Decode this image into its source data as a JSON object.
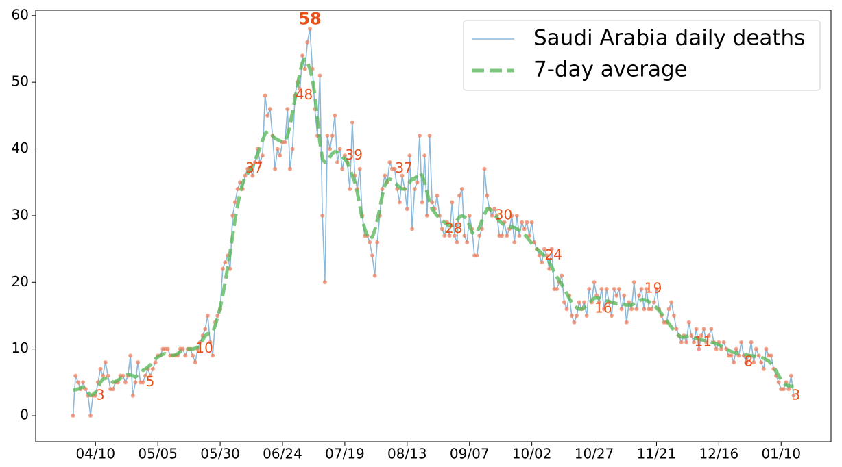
{
  "chart_data": {
    "type": "line",
    "x": [
      0,
      1,
      2,
      3,
      4,
      5,
      6,
      7,
      8,
      9,
      10,
      11,
      12,
      13,
      14,
      15,
      16,
      17,
      18,
      19,
      20,
      21,
      22,
      23,
      24,
      25,
      26,
      27,
      28,
      29,
      30,
      31,
      32,
      33,
      34,
      35,
      36,
      37,
      38,
      39,
      40,
      41,
      42,
      43,
      44,
      45,
      46,
      47,
      48,
      49,
      50,
      51,
      52,
      53,
      54,
      55,
      56,
      57,
      58,
      59,
      60,
      61,
      62,
      63,
      64,
      65,
      66,
      67,
      68,
      69,
      70,
      71,
      72,
      73,
      74,
      75,
      76,
      77,
      78,
      79,
      80,
      81,
      82,
      83,
      84,
      85,
      86,
      87,
      88,
      89,
      90,
      91,
      92,
      93,
      94,
      95,
      96,
      97,
      98,
      99,
      100,
      101,
      102,
      103,
      104,
      105,
      106,
      107,
      108,
      109,
      110,
      111,
      112,
      113,
      114,
      115,
      116,
      117,
      118,
      119,
      120,
      121,
      122,
      123,
      124,
      125,
      126,
      127,
      128,
      129,
      130,
      131,
      132,
      133,
      134,
      135,
      136,
      137,
      138,
      139,
      140,
      141,
      142,
      143,
      144,
      145,
      146,
      147,
      148,
      149,
      150,
      151,
      152,
      153,
      154,
      155,
      156,
      157,
      158,
      159,
      160,
      161,
      162,
      163,
      164,
      165,
      166,
      167,
      168,
      169,
      170,
      171,
      172,
      173,
      174,
      175,
      176,
      177,
      178,
      179,
      180,
      181,
      182,
      183,
      184,
      185,
      186,
      187,
      188,
      189,
      190,
      191,
      192,
      193,
      194,
      195,
      196,
      197,
      198,
      199,
      200,
      201,
      202,
      203,
      204,
      205,
      206,
      207,
      208,
      209,
      210,
      211,
      212,
      213,
      214,
      215,
      216,
      217,
      218,
      219,
      220,
      221,
      222,
      223,
      224,
      225,
      226,
      227,
      228,
      229,
      230,
      231,
      232,
      233,
      234,
      235,
      236,
      237,
      238,
      239,
      240,
      241,
      242,
      243,
      244,
      245,
      246,
      247,
      248,
      249,
      250,
      251,
      252,
      253,
      254,
      255,
      256,
      257,
      258,
      259,
      260,
      261,
      262,
      263,
      264,
      265,
      266,
      267,
      268,
      269,
      270,
      271,
      272,
      273,
      274,
      275,
      276,
      277,
      278,
      279,
      280,
      281,
      282,
      283,
      284,
      285,
      286,
      287,
      288,
      289
    ],
    "series": [
      {
        "name": "Saudi Arabia daily deaths",
        "color": "#7fb0d5",
        "marker_color": "#f0805e",
        "style": "solid",
        "values": [
          0,
          6,
          5,
          4,
          5,
          4,
          3,
          0,
          3,
          3,
          5,
          7,
          6,
          8,
          6,
          4,
          4,
          5,
          5,
          6,
          6,
          5,
          6,
          9,
          3,
          5,
          8,
          5,
          5,
          6,
          7,
          6,
          7,
          8,
          9,
          9,
          10,
          10,
          10,
          9,
          9,
          9,
          9,
          10,
          10,
          9,
          10,
          10,
          9,
          8,
          10,
          11,
          12,
          13,
          15,
          11,
          9,
          14,
          15,
          16,
          22,
          23,
          24,
          22,
          30,
          32,
          34,
          35,
          34,
          36,
          37,
          37,
          36,
          38,
          40,
          38,
          39,
          48,
          45,
          46,
          42,
          37,
          40,
          39,
          41,
          41,
          46,
          37,
          40,
          48,
          50,
          49,
          54,
          52,
          56,
          58,
          52,
          46,
          42,
          51,
          30,
          20,
          42,
          40,
          42,
          45,
          38,
          40,
          37,
          39,
          38,
          34,
          44,
          36,
          34,
          37,
          30,
          27,
          27,
          26,
          24,
          21,
          26,
          30,
          34,
          36,
          35,
          38,
          37,
          37,
          34,
          32,
          36,
          34,
          31,
          39,
          28,
          34,
          35,
          42,
          32,
          39,
          30,
          42,
          32,
          31,
          33,
          30,
          28,
          27,
          29,
          27,
          32,
          27,
          26,
          33,
          34,
          27,
          26,
          30,
          28,
          24,
          24,
          27,
          28,
          37,
          33,
          31,
          30,
          31,
          30,
          27,
          27,
          29,
          27,
          28,
          30,
          26,
          30,
          27,
          29,
          28,
          29,
          27,
          29,
          26,
          25,
          24,
          23,
          25,
          24,
          22,
          25,
          19,
          19,
          20,
          21,
          17,
          16,
          18,
          15,
          14,
          15,
          17,
          16,
          17,
          15,
          19,
          17,
          20,
          18,
          17,
          19,
          16,
          19,
          17,
          15,
          19,
          18,
          19,
          16,
          18,
          14,
          17,
          16,
          20,
          16,
          18,
          19,
          16,
          19,
          16,
          16,
          17,
          19,
          16,
          15,
          14,
          14,
          16,
          17,
          15,
          13,
          12,
          11,
          12,
          11,
          14,
          12,
          11,
          13,
          10,
          12,
          13,
          11,
          12,
          13,
          11,
          10,
          11,
          10,
          11,
          10,
          9,
          9,
          8,
          10,
          9,
          11,
          9,
          8,
          9,
          11,
          8,
          10,
          9,
          8,
          7,
          10,
          9,
          9,
          7,
          6,
          5,
          4,
          4,
          5,
          4,
          6,
          3
        ]
      },
      {
        "name": "7-day average",
        "color": "#5cb85c",
        "style": "dashed",
        "values": [
          3.8,
          3.9,
          4.0,
          4.2,
          4.3,
          4.0,
          3.5,
          3.0,
          3.2,
          3.5,
          4.2,
          5.0,
          5.5,
          5.6,
          5.7,
          5.4,
          5.0,
          5.1,
          5.3,
          5.6,
          5.8,
          6.0,
          6.2,
          6.1,
          6.0,
          5.8,
          6.1,
          6.4,
          6.8,
          7.0,
          7.3,
          7.6,
          8.0,
          8.5,
          8.8,
          9.0,
          9.2,
          9.3,
          9.2,
          9.1,
          9.0,
          9.1,
          9.3,
          9.6,
          9.8,
          9.9,
          10.0,
          10.0,
          10.0,
          10.1,
          10.3,
          10.8,
          11.4,
          12.0,
          12.3,
          12.2,
          12.6,
          13.5,
          14.8,
          16.2,
          18.0,
          20.0,
          22.2,
          24.5,
          27.0,
          29.5,
          31.5,
          33.5,
          34.8,
          35.8,
          36.3,
          36.8,
          37.5,
          38.3,
          39.2,
          40.2,
          41.3,
          42.3,
          42.6,
          42.4,
          42.0,
          41.6,
          41.4,
          41.2,
          41.0,
          41.2,
          42.0,
          43.5,
          45.5,
          47.5,
          49.5,
          51.5,
          53.0,
          53.5,
          53.0,
          52.0,
          50.5,
          48.0,
          44.5,
          41.0,
          38.5,
          38.0,
          38.2,
          38.8,
          39.3,
          39.6,
          39.5,
          39.2,
          38.8,
          38.5,
          38.0,
          37.0,
          36.0,
          35.0,
          33.5,
          31.5,
          29.5,
          28.0,
          27.0,
          26.5,
          26.8,
          27.8,
          29.3,
          31.0,
          33.0,
          34.5,
          35.2,
          35.5,
          35.3,
          35.0,
          34.6,
          34.2,
          34.0,
          34.0,
          34.5,
          35.0,
          35.5,
          35.5,
          36.0,
          36.5,
          36.0,
          35.0,
          33.5,
          32.0,
          31.0,
          30.5,
          30.0,
          29.6,
          29.3,
          29.0,
          28.7,
          28.5,
          28.5,
          28.8,
          29.3,
          29.8,
          30.0,
          29.8,
          29.5,
          28.5,
          27.5,
          27.2,
          27.5,
          28.3,
          29.3,
          30.2,
          31.0,
          31.0,
          30.7,
          30.2,
          29.7,
          29.2,
          28.9,
          28.6,
          28.4,
          28.3,
          28.3,
          28.2,
          28.0,
          27.8,
          27.5,
          27.2,
          26.8,
          26.3,
          25.8,
          25.3,
          25.0,
          24.7,
          24.3,
          24.0,
          23.6,
          23.0,
          22.3,
          21.5,
          20.8,
          20.2,
          19.7,
          19.0,
          18.3,
          17.6,
          17.0,
          16.5,
          16.2,
          16.0,
          16.0,
          16.2,
          16.5,
          16.9,
          17.3,
          17.6,
          17.7,
          17.6,
          17.4,
          17.3,
          17.2,
          17.1,
          17.0,
          16.9,
          16.8,
          16.8,
          16.8,
          16.7,
          16.6,
          16.6,
          16.6,
          16.8,
          17.0,
          17.2,
          17.4,
          17.4,
          17.3,
          17.1,
          16.8,
          16.5,
          16.2,
          15.8,
          15.3,
          14.8,
          14.3,
          13.8,
          13.3,
          12.8,
          12.4,
          12.0,
          11.8,
          11.8,
          11.9,
          12.0,
          11.9,
          11.7,
          11.6,
          11.5,
          11.4,
          11.3,
          11.2,
          11.1,
          11.0,
          10.9,
          10.8,
          10.6,
          10.4,
          10.2,
          10.0,
          9.8,
          9.6,
          9.5,
          9.4,
          9.4,
          9.3,
          9.2,
          9.1,
          9.0,
          9.0,
          8.9,
          8.9,
          8.8,
          8.7,
          8.6,
          8.4,
          8.2,
          7.8,
          7.3,
          6.7,
          6.0,
          5.4,
          4.9,
          4.6,
          4.5,
          4.4,
          4.4
        ]
      }
    ],
    "annotations": [
      {
        "x": 10,
        "y": 3
      },
      {
        "x": 30,
        "y": 5
      },
      {
        "x": 50,
        "y": 10
      },
      {
        "x": 70,
        "y": 37
      },
      {
        "x": 90,
        "y": 48
      },
      {
        "x": 110,
        "y": 39
      },
      {
        "x": 130,
        "y": 37
      },
      {
        "x": 150,
        "y": 28
      },
      {
        "x": 170,
        "y": 30
      },
      {
        "x": 190,
        "y": 24
      },
      {
        "x": 210,
        "y": 16
      },
      {
        "x": 230,
        "y": 19
      },
      {
        "x": 250,
        "y": 11
      },
      {
        "x": 270,
        "y": 8
      },
      {
        "x": 289,
        "y": 3
      }
    ],
    "peak": {
      "x": 95,
      "y": 58
    },
    "annotation_color": "#e8501a",
    "xlim": [
      -15,
      304
    ],
    "ylim": [
      -3.9,
      60.8
    ],
    "xticks": [
      {
        "value": 9,
        "label": "04/10"
      },
      {
        "value": 34,
        "label": "05/05"
      },
      {
        "value": 59,
        "label": "05/30"
      },
      {
        "value": 84,
        "label": "06/24"
      },
      {
        "value": 109,
        "label": "07/19"
      },
      {
        "value": 134,
        "label": "08/13"
      },
      {
        "value": 159,
        "label": "09/07"
      },
      {
        "value": 184,
        "label": "10/02"
      },
      {
        "value": 209,
        "label": "10/27"
      },
      {
        "value": 234,
        "label": "11/21"
      },
      {
        "value": 259,
        "label": "12/16"
      },
      {
        "value": 284,
        "label": "01/10"
      }
    ],
    "yticks": [
      0,
      10,
      20,
      30,
      40,
      50,
      60
    ],
    "grid": false,
    "legend": "upper right"
  }
}
